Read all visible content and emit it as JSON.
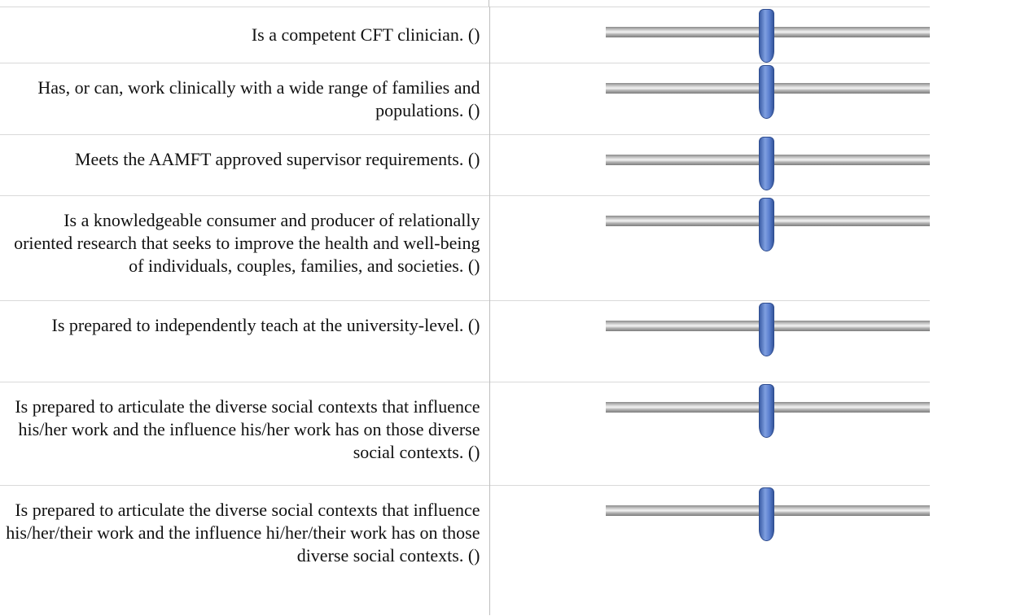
{
  "items": [
    "Is a competent CFT clinician. ()",
    "Has, or can, work clinically with a wide range of families and populations. ()",
    "Meets the AAMFT approved supervisor requirements. ()",
    "Is a knowledgeable consumer and producer of relationally oriented research that seeks to improve the health and well-being of individuals, couples, families, and societies. ()",
    "Is prepared to independently teach at the university-level. ()",
    "Is prepared to articulate the diverse social contexts that influence his/her work and the influence his/her work has on those diverse social contexts. ()",
    "Is prepared to articulate the diverse social contexts that influence his/her/their work and the influence hi/her/their work has on those diverse social contexts. ()"
  ]
}
